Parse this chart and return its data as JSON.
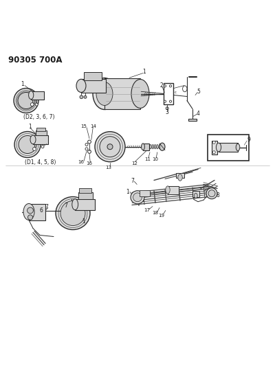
{
  "title": "90305 700A",
  "bg_color": "#ffffff",
  "line_color": "#2a2a2a",
  "text_color": "#1a1a1a",
  "figsize": [
    4.0,
    5.33
  ],
  "dpi": 100,
  "part_d2": "(D2, 3, 6, 7)",
  "part_d1": "(D1, 4, 5, 8)"
}
